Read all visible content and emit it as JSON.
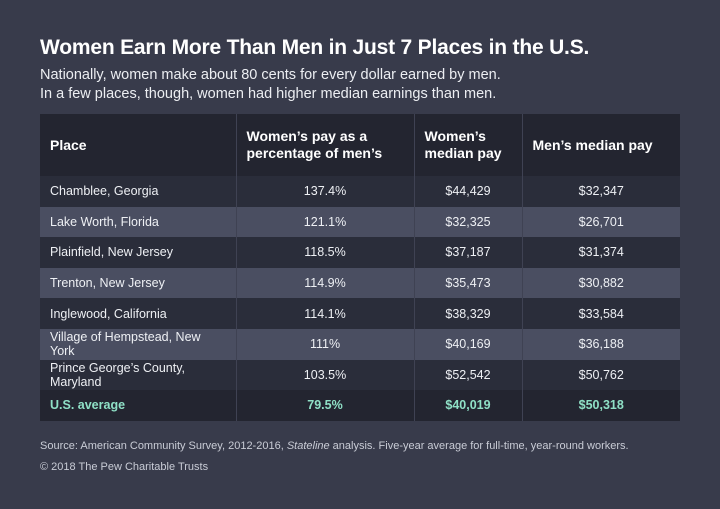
{
  "title": "Women Earn More Than Men in Just 7 Places in the U.S.",
  "subtitle_line1": "Nationally, women make about 80 cents for every dollar earned by men.",
  "subtitle_line2": "In a few places, though, women had higher median earnings than men.",
  "source_prefix": "Source: American Community Survey, 2012-2016, ",
  "source_italic": "Stateline",
  "source_suffix": " analysis. Five-year average for full-time, year-round workers.",
  "copyright": "© 2018 The Pew Charitable Trusts",
  "colors": {
    "background": "#383b4b",
    "header": "#232530",
    "highlight": "#8fe0c6"
  },
  "chart_data": {
    "type": "table",
    "columns": [
      "Place",
      "Women’s pay as a percentage of men’s",
      "Women’s median pay",
      "Men’s median pay"
    ],
    "rows": [
      [
        "Chamblee, Georgia",
        "137.4%",
        "$44,429",
        "$32,347"
      ],
      [
        "Lake Worth, Florida",
        "121.1%",
        "$32,325",
        "$26,701"
      ],
      [
        "Plainfield, New Jersey",
        "118.5%",
        "$37,187",
        "$31,374"
      ],
      [
        "Trenton, New Jersey",
        "114.9%",
        "$35,473",
        "$30,882"
      ],
      [
        "Inglewood, California",
        "114.1%",
        "$38,329",
        "$33,584"
      ],
      [
        "Village of Hempstead, New York",
        "111%",
        "$40,169",
        "$36,188"
      ],
      [
        "Prince George’s County, Maryland",
        "103.5%",
        "$52,542",
        "$50,762"
      ]
    ],
    "average_row": [
      "U.S. average",
      "79.5%",
      "$40,019",
      "$50,318"
    ]
  }
}
